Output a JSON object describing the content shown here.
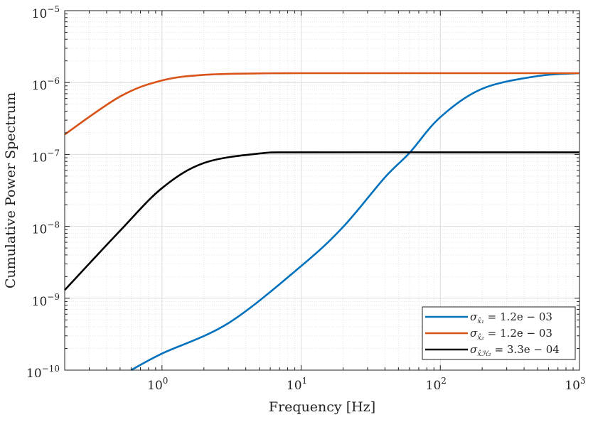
{
  "chart_data": {
    "type": "line",
    "title": "",
    "xlabel": "Frequency [Hz]",
    "ylabel": "Cumulative Power Spectrum",
    "xscale": "log",
    "yscale": "log",
    "xlim": [
      0.2,
      1000
    ],
    "ylim": [
      1e-10,
      1e-05
    ],
    "grid": true,
    "minor_grid": true,
    "legend_position": "bottom-right",
    "x_ticks": [
      {
        "base": "10",
        "exp": "0",
        "value": 1
      },
      {
        "base": "10",
        "exp": "1",
        "value": 10
      },
      {
        "base": "10",
        "exp": "2",
        "value": 100
      },
      {
        "base": "10",
        "exp": "3",
        "value": 1000
      }
    ],
    "y_ticks": [
      {
        "base": "10",
        "exp": "−10",
        "value": 1e-10
      },
      {
        "base": "10",
        "exp": "−9",
        "value": 1e-09
      },
      {
        "base": "10",
        "exp": "−8",
        "value": 1e-08
      },
      {
        "base": "10",
        "exp": "−7",
        "value": 1e-07
      },
      {
        "base": "10",
        "exp": "−6",
        "value": 1e-06
      },
      {
        "base": "10",
        "exp": "−5",
        "value": 1e-05
      }
    ],
    "series": [
      {
        "name": "σ_x̂1 = 1.2e − 03",
        "legend": {
          "sym": "σ",
          "sub": "x̂₁",
          "rest": " = 1.2e − 03"
        },
        "color": "#0072BD",
        "x": [
          0.6,
          1,
          3,
          10,
          20,
          40,
          60,
          100,
          200,
          500,
          1000
        ],
        "y": [
          1e-10,
          1.7e-10,
          4.5e-10,
          2.8e-09,
          9.8e-09,
          4.8e-08,
          1.05e-07,
          3.3e-07,
          8.2e-07,
          1.23e-06,
          1.35e-06
        ]
      },
      {
        "name": "σ_x̂2 = 1.2e − 03",
        "legend": {
          "sym": "σ",
          "sub": "x̂₂",
          "rest": " = 1.2e − 03"
        },
        "color": "#D95319",
        "x": [
          0.2,
          0.5,
          1,
          2,
          5,
          10,
          100,
          1000
        ],
        "y": [
          1.9e-07,
          6.4e-07,
          1.07e-06,
          1.28e-06,
          1.34e-06,
          1.35e-06,
          1.35e-06,
          1.35e-06
        ]
      },
      {
        "name": "σ_x̂H2 = 3.3e − 04",
        "legend": {
          "sym": "σ",
          "sub": "x̂ℋ₂",
          "rest": " = 3.3e − 04"
        },
        "color": "#000000",
        "x": [
          0.2,
          0.5,
          1,
          2,
          5,
          10,
          100,
          1000
        ],
        "y": [
          1.3e-09,
          8.7e-09,
          3.4e-08,
          7.6e-08,
          1.03e-07,
          1.07e-07,
          1.07e-07,
          1.07e-07
        ]
      }
    ]
  }
}
